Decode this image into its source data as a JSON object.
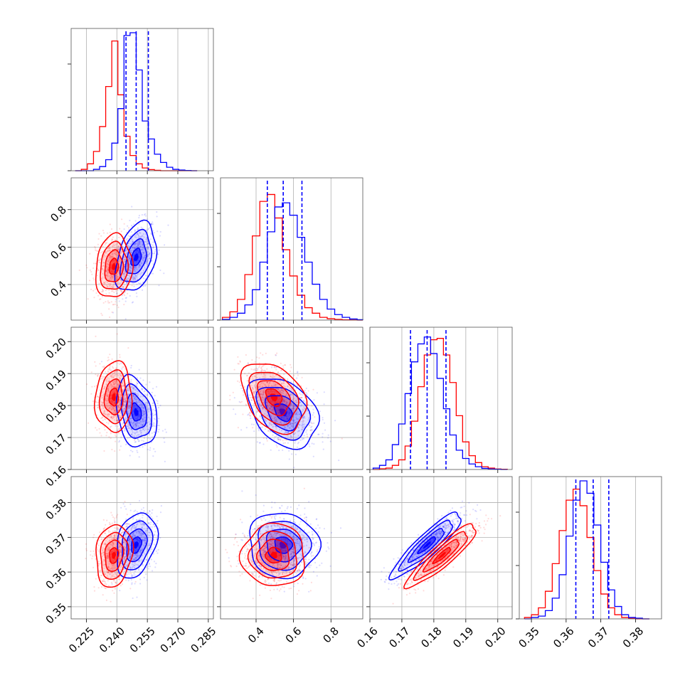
{
  "chart_data": {
    "type": "corner",
    "grid": true,
    "series": [
      {
        "name": "",
        "color": "#0000ff"
      },
      {
        "name": "",
        "color": "#ff0000"
      }
    ],
    "params": [
      {
        "id": "p1",
        "range": [
          0.2175,
          0.2875
        ],
        "ticks": [
          0.225,
          0.24,
          0.255,
          0.27,
          0.285
        ],
        "tick_labels": [
          "0.225",
          "0.240",
          "0.255",
          "0.270",
          "0.285"
        ]
      },
      {
        "id": "p2",
        "range": [
          0.21,
          0.97
        ],
        "ticks": [
          0.4,
          0.6,
          0.8
        ],
        "tick_labels": [
          "0.4",
          "0.6",
          "0.8"
        ]
      },
      {
        "id": "p3",
        "range": [
          0.16,
          0.2045
        ],
        "ticks": [
          0.16,
          0.17,
          0.18,
          0.19,
          0.2
        ],
        "tick_labels": [
          "0.16",
          "0.17",
          "0.18",
          "0.19",
          "0.20"
        ]
      },
      {
        "id": "p4",
        "range": [
          0.3465,
          0.3875
        ],
        "ticks": [
          0.35,
          0.36,
          0.37,
          0.38
        ],
        "tick_labels": [
          "0.35",
          "0.36",
          "0.37",
          "0.38"
        ]
      }
    ],
    "quantiles_blue": [
      [
        0.2445,
        0.2495,
        0.2555
      ],
      [
        0.46,
        0.545,
        0.645
      ],
      [
        0.1727,
        0.1779,
        0.1838
      ],
      [
        0.3628,
        0.3678,
        0.3723
      ]
    ],
    "posteriors": {
      "blue": {
        "mean": [
          0.2495,
          0.545,
          0.1779,
          0.3678
        ],
        "sd": [
          0.005,
          0.093,
          0.0055,
          0.0047
        ],
        "corr": [
          [
            1,
            0.35,
            -0.25,
            0.3
          ],
          [
            0.35,
            1,
            -0.35,
            -0.05
          ],
          [
            -0.25,
            -0.35,
            1,
            0.9
          ],
          [
            0.3,
            -0.05,
            0.9,
            1
          ]
        ]
      },
      "red": {
        "mean": [
          0.2385,
          0.495,
          0.1826,
          0.3648
        ],
        "sd": [
          0.0045,
          0.085,
          0.0055,
          0.0045
        ],
        "corr": [
          [
            1,
            0.1,
            0.05,
            0.15
          ],
          [
            0.1,
            1,
            -0.35,
            0.0
          ],
          [
            0.05,
            -0.35,
            1,
            0.9
          ],
          [
            0.15,
            0.0,
            0.9,
            1
          ]
        ]
      }
    },
    "histograms": [
      {
        "bins": [
          0.2195,
          0.2225,
          0.2255,
          0.2285,
          0.2315,
          0.2345,
          0.2375,
          0.2405,
          0.2435,
          0.2465,
          0.2495,
          0.2525,
          0.2555,
          0.2585,
          0.2615,
          0.2645,
          0.2675,
          0.2705,
          0.2735,
          0.2765,
          0.2795
        ],
        "blue": [
          0,
          0,
          0,
          0.01,
          0.03,
          0.08,
          0.2,
          0.45,
          0.98,
          1.0,
          0.73,
          0.36,
          0.23,
          0.12,
          0.06,
          0.025,
          0.01,
          0.005,
          0.002,
          0
        ],
        "red": [
          0,
          0.01,
          0.05,
          0.14,
          0.32,
          0.61,
          0.94,
          0.55,
          0.25,
          0.11,
          0.05,
          0.02,
          0.008,
          0.003,
          0,
          0,
          0,
          0,
          0,
          0
        ]
      },
      {
        "bins": [
          0.22,
          0.26,
          0.3,
          0.34,
          0.38,
          0.42,
          0.46,
          0.5,
          0.54,
          0.58,
          0.62,
          0.66,
          0.7,
          0.74,
          0.78,
          0.82,
          0.86,
          0.9,
          0.94,
          0.97
        ],
        "blue": [
          0.005,
          0.02,
          0.05,
          0.11,
          0.22,
          0.42,
          0.64,
          0.82,
          0.85,
          0.76,
          0.6,
          0.42,
          0.26,
          0.15,
          0.08,
          0.04,
          0.02,
          0.008,
          0.003
        ],
        "red": [
          0.02,
          0.06,
          0.15,
          0.33,
          0.61,
          0.86,
          0.91,
          0.74,
          0.51,
          0.32,
          0.18,
          0.09,
          0.05,
          0.02,
          0.01,
          0.005,
          0.002,
          0.001,
          0
        ]
      },
      {
        "bins": [
          0.161,
          0.163,
          0.165,
          0.167,
          0.169,
          0.171,
          0.173,
          0.175,
          0.177,
          0.179,
          0.181,
          0.183,
          0.185,
          0.187,
          0.189,
          0.191,
          0.193,
          0.195,
          0.197,
          0.199,
          0.201,
          0.203
        ],
        "blue": [
          0.01,
          0.03,
          0.07,
          0.18,
          0.33,
          0.55,
          0.78,
          0.91,
          0.96,
          0.84,
          0.66,
          0.44,
          0.25,
          0.14,
          0.08,
          0.04,
          0.02,
          0.008,
          0.004,
          0.002,
          0
        ],
        "red": [
          0,
          0.005,
          0.01,
          0.03,
          0.07,
          0.17,
          0.35,
          0.6,
          0.83,
          0.94,
          0.95,
          0.83,
          0.63,
          0.39,
          0.2,
          0.1,
          0.05,
          0.02,
          0.01,
          0.004,
          0.002
        ]
      },
      {
        "bins": [
          0.348,
          0.35,
          0.352,
          0.354,
          0.356,
          0.358,
          0.36,
          0.362,
          0.364,
          0.366,
          0.368,
          0.37,
          0.372,
          0.374,
          0.376,
          0.378,
          0.38,
          0.382,
          0.384
        ],
        "blue": [
          0,
          0.01,
          0.02,
          0.06,
          0.15,
          0.32,
          0.6,
          0.86,
          1.0,
          0.91,
          0.68,
          0.41,
          0.21,
          0.09,
          0.03,
          0.01,
          0.005,
          0
        ],
        "red": [
          0.01,
          0.03,
          0.08,
          0.2,
          0.4,
          0.64,
          0.86,
          0.94,
          0.82,
          0.59,
          0.35,
          0.18,
          0.08,
          0.03,
          0.01,
          0.005,
          0,
          0
        ]
      }
    ]
  }
}
